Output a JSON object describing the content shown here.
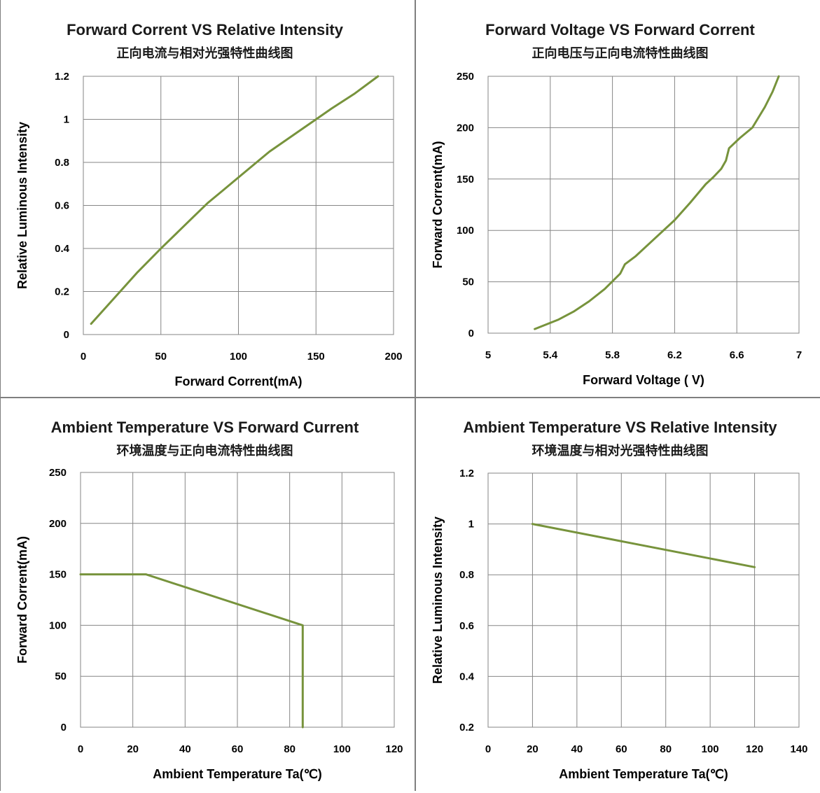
{
  "colors": {
    "line": "#77933c",
    "grid": "#868686",
    "axis_text": "#000000",
    "divider": "#7f7f7f"
  },
  "chart_data": [
    {
      "type": "line",
      "title": "Forward  Corrent VS  Relative Intensity",
      "subtitle": "正向电流与相对光强特性曲线图",
      "xlabel": "Forward  Corrent(mA)",
      "ylabel": "Relative  Luminous Intensity",
      "xlim": [
        0,
        200
      ],
      "ylim": [
        0,
        1.2
      ],
      "xticks": [
        "0",
        "50",
        "100",
        "150",
        "200"
      ],
      "yticks": [
        "0",
        "0.2",
        "0.4",
        "0.6",
        "0.8",
        "1",
        "1.2"
      ],
      "grid": true,
      "series": [
        {
          "x": [
            5,
            25,
            35,
            50,
            60,
            70,
            80,
            90,
            100,
            120,
            140,
            150,
            160,
            175,
            190
          ],
          "y": [
            0.05,
            0.21,
            0.29,
            0.4,
            0.47,
            0.54,
            0.61,
            0.67,
            0.73,
            0.85,
            0.95,
            1.0,
            1.05,
            1.12,
            1.2
          ]
        }
      ]
    },
    {
      "type": "line",
      "title": "Forward Voltage VS Forward  Corrent",
      "subtitle": "正向电压与正向电流特性曲线图",
      "xlabel": "Forward Voltage ( V)",
      "ylabel": "Forward  Corrent(mA)",
      "xlim": [
        5,
        7
      ],
      "ylim": [
        0,
        250
      ],
      "xticks": [
        "5",
        "5.4",
        "5.8",
        "6.2",
        "6.6",
        "7"
      ],
      "yticks": [
        "0",
        "50",
        "100",
        "150",
        "200",
        "250"
      ],
      "grid": true,
      "series": [
        {
          "x": [
            5.3,
            5.45,
            5.55,
            5.65,
            5.75,
            5.85,
            5.88,
            5.95,
            6.05,
            6.2,
            6.3,
            6.4,
            6.45,
            6.5,
            6.53,
            6.55,
            6.62,
            6.7,
            6.78,
            6.83,
            6.87
          ],
          "y": [
            4,
            13,
            21,
            31,
            43,
            58,
            67,
            75,
            89,
            110,
            127,
            145,
            152,
            160,
            168,
            180,
            190,
            200,
            220,
            235,
            250
          ]
        }
      ]
    },
    {
      "type": "line",
      "title": "Ambient Temperature VS  Forward Current",
      "subtitle": "环境温度与正向电流特性曲线图",
      "xlabel": "Ambient Temperature Ta(℃)",
      "ylabel": "Forward  Corrent(mA)",
      "xlim": [
        0,
        120
      ],
      "ylim": [
        0,
        250
      ],
      "xticks": [
        "0",
        "20",
        "40",
        "60",
        "80",
        "100",
        "120"
      ],
      "yticks": [
        "0",
        "50",
        "100",
        "150",
        "200",
        "250"
      ],
      "grid": true,
      "series": [
        {
          "x": [
            0,
            25,
            85,
            85
          ],
          "y": [
            150,
            150,
            100,
            0
          ]
        }
      ]
    },
    {
      "type": "line",
      "title": "Ambient Temperature VS Relative Intensity",
      "subtitle": "环境温度与相对光强特性曲线图",
      "xlabel": "Ambient Temperature Ta(℃)",
      "ylabel": "Relative  Luminous Intensity",
      "xlim": [
        0,
        140
      ],
      "ylim": [
        0.2,
        1.2
      ],
      "xticks": [
        "0",
        "20",
        "40",
        "60",
        "80",
        "100",
        "120",
        "140"
      ],
      "yticks": [
        "0.2",
        "0.4",
        "0.6",
        "0.8",
        "1",
        "1.2"
      ],
      "grid": true,
      "series": [
        {
          "x": [
            20,
            120
          ],
          "y": [
            1.0,
            0.83
          ]
        }
      ]
    }
  ]
}
